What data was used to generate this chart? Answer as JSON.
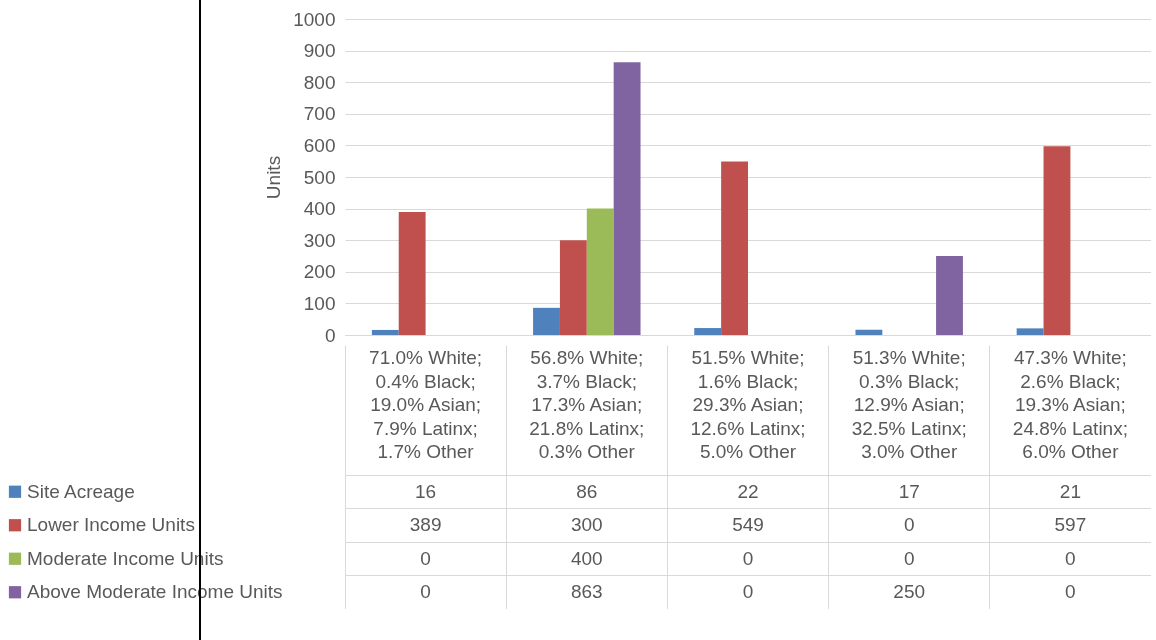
{
  "chart_data": {
    "type": "bar",
    "ylabel": "Units",
    "categories": [
      "71.0% White; 0.4% Black; 19.0% Asian; 7.9% Latinx; 1.7% Other",
      "56.8% White; 3.7% Black; 17.3% Asian; 21.8% Latinx; 0.3% Other",
      "51.5% White; 1.6% Black; 29.3% Asian; 12.6% Latinx; 5.0% Other",
      "51.3% White; 0.3% Black; 12.9% Asian; 32.5% Latinx; 3.0% Other",
      "47.3% White; 2.6% Black; 19.3% Asian; 24.8% Latinx; 6.0% Other"
    ],
    "series": [
      {
        "name": "Site Acreage",
        "color": "#4f81bd",
        "values": [
          16,
          86,
          22,
          17,
          21
        ]
      },
      {
        "name": "Lower Income Units",
        "color": "#c0504d",
        "values": [
          389,
          300,
          549,
          0,
          597
        ]
      },
      {
        "name": "Moderate Income Units",
        "color": "#9bbb59",
        "values": [
          0,
          400,
          0,
          0,
          0
        ]
      },
      {
        "name": "Above Moderate Income Units",
        "color": "#8064a2",
        "values": [
          0,
          863,
          0,
          250,
          0
        ]
      }
    ],
    "ylim": [
      0,
      1000
    ],
    "yticks": [
      0,
      100,
      200,
      300,
      400,
      500,
      600,
      700,
      800,
      900,
      1000
    ],
    "grid": "y",
    "legend": "bottom",
    "data_labels": true
  }
}
